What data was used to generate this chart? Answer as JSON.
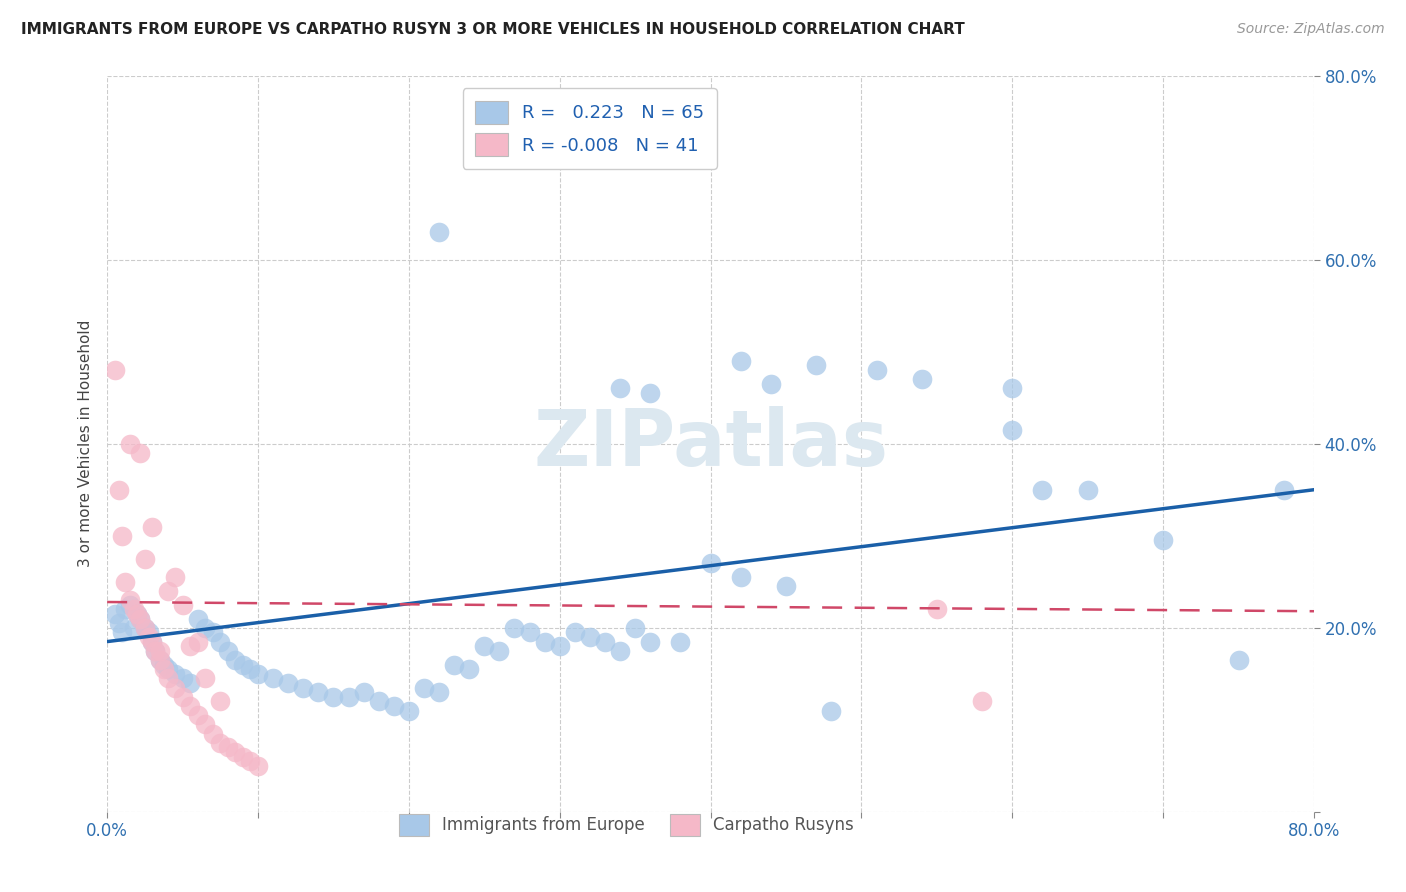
{
  "title": "IMMIGRANTS FROM EUROPE VS CARPATHO RUSYN 3 OR MORE VEHICLES IN HOUSEHOLD CORRELATION CHART",
  "source": "Source: ZipAtlas.com",
  "ylabel": "3 or more Vehicles in Household",
  "xlim": [
    0,
    0.8
  ],
  "ylim": [
    0,
    0.8
  ],
  "blue_R": 0.223,
  "blue_N": 65,
  "pink_R": -0.008,
  "pink_N": 41,
  "blue_color": "#a8c8e8",
  "pink_color": "#f5b8c8",
  "blue_line_color": "#1a5fa8",
  "pink_line_color": "#d04868",
  "blue_line_x0": 0.0,
  "blue_line_y0": 0.185,
  "blue_line_x1": 0.8,
  "blue_line_y1": 0.35,
  "pink_line_x0": 0.0,
  "pink_line_y0": 0.228,
  "pink_line_x1": 0.8,
  "pink_line_y1": 0.218,
  "blue_scatter_x": [
    0.005,
    0.008,
    0.01,
    0.012,
    0.015,
    0.018,
    0.02,
    0.022,
    0.025,
    0.028,
    0.03,
    0.032,
    0.035,
    0.038,
    0.04,
    0.045,
    0.05,
    0.055,
    0.06,
    0.065,
    0.07,
    0.075,
    0.08,
    0.085,
    0.09,
    0.095,
    0.1,
    0.11,
    0.12,
    0.13,
    0.14,
    0.15,
    0.16,
    0.17,
    0.18,
    0.19,
    0.2,
    0.21,
    0.22,
    0.23,
    0.24,
    0.25,
    0.26,
    0.27,
    0.28,
    0.29,
    0.3,
    0.31,
    0.32,
    0.33,
    0.34,
    0.35,
    0.36,
    0.38,
    0.4,
    0.42,
    0.45,
    0.48,
    0.51,
    0.54,
    0.6,
    0.65,
    0.7,
    0.75,
    0.78
  ],
  "blue_scatter_y": [
    0.215,
    0.205,
    0.195,
    0.22,
    0.225,
    0.2,
    0.215,
    0.21,
    0.2,
    0.195,
    0.185,
    0.175,
    0.165,
    0.16,
    0.155,
    0.15,
    0.145,
    0.14,
    0.21,
    0.2,
    0.195,
    0.185,
    0.175,
    0.165,
    0.16,
    0.155,
    0.15,
    0.145,
    0.14,
    0.135,
    0.13,
    0.125,
    0.125,
    0.13,
    0.12,
    0.115,
    0.11,
    0.135,
    0.13,
    0.16,
    0.155,
    0.18,
    0.175,
    0.2,
    0.195,
    0.185,
    0.18,
    0.195,
    0.19,
    0.185,
    0.175,
    0.2,
    0.185,
    0.185,
    0.27,
    0.255,
    0.245,
    0.11,
    0.48,
    0.47,
    0.46,
    0.35,
    0.295,
    0.165,
    0.35
  ],
  "blue_outlier_x": [
    0.22,
    0.34,
    0.36,
    0.42,
    0.44,
    0.47,
    0.6,
    0.62
  ],
  "blue_outlier_y": [
    0.63,
    0.46,
    0.455,
    0.49,
    0.465,
    0.485,
    0.415,
    0.35
  ],
  "pink_scatter_x": [
    0.005,
    0.008,
    0.01,
    0.012,
    0.015,
    0.018,
    0.02,
    0.022,
    0.025,
    0.028,
    0.03,
    0.032,
    0.035,
    0.038,
    0.04,
    0.045,
    0.05,
    0.055,
    0.06,
    0.065,
    0.07,
    0.075,
    0.08,
    0.085,
    0.09,
    0.095,
    0.1,
    0.015,
    0.022,
    0.03,
    0.04,
    0.05,
    0.06,
    0.035,
    0.025,
    0.045,
    0.055,
    0.065,
    0.075,
    0.55,
    0.58
  ],
  "pink_scatter_y": [
    0.48,
    0.35,
    0.3,
    0.25,
    0.23,
    0.22,
    0.215,
    0.21,
    0.2,
    0.19,
    0.185,
    0.175,
    0.165,
    0.155,
    0.145,
    0.135,
    0.125,
    0.115,
    0.105,
    0.095,
    0.085,
    0.075,
    0.07,
    0.065,
    0.06,
    0.055,
    0.05,
    0.4,
    0.39,
    0.31,
    0.24,
    0.225,
    0.185,
    0.175,
    0.275,
    0.255,
    0.18,
    0.145,
    0.12,
    0.22,
    0.12
  ]
}
